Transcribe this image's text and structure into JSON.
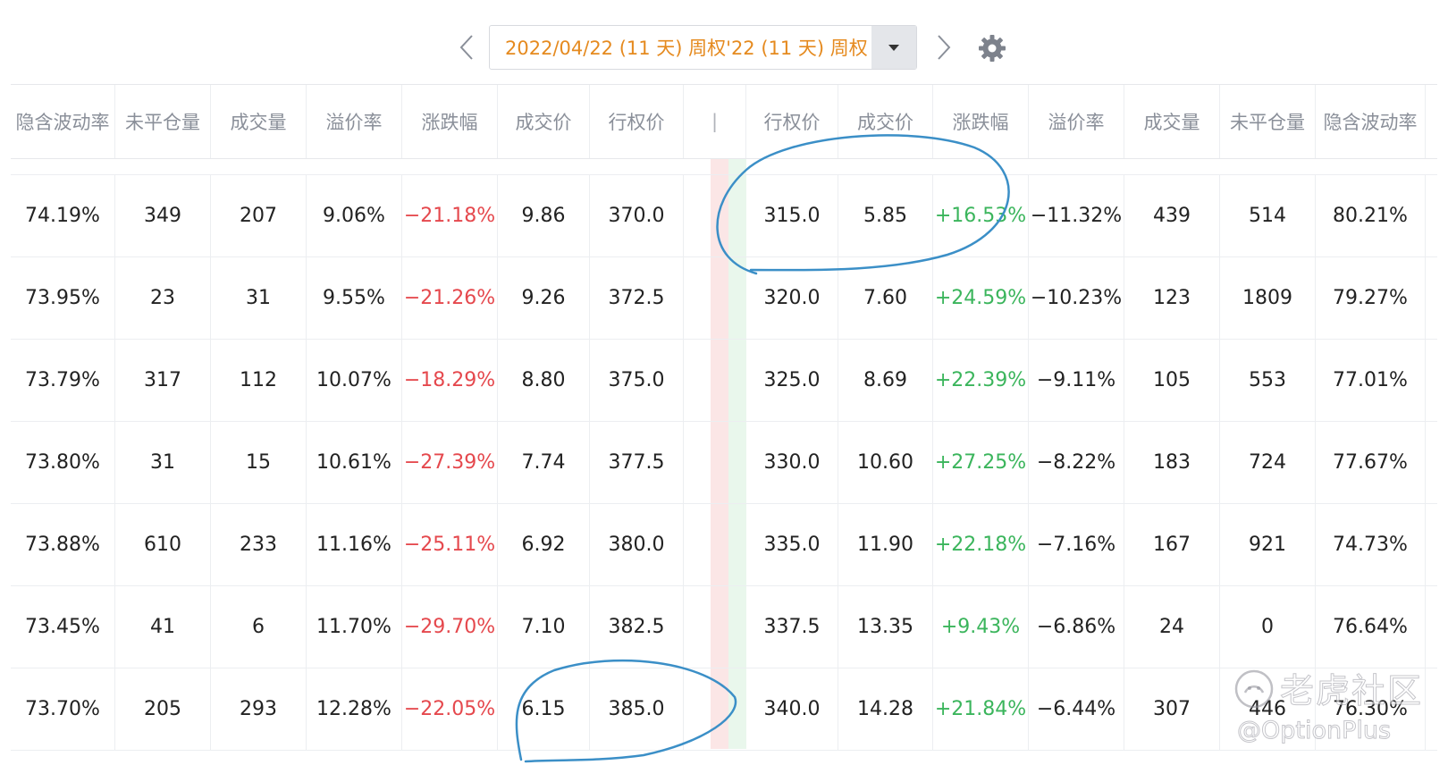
{
  "toolbar": {
    "expiry_label": "2022/04/22 (11 天) 周权'22 (11 天) 周权",
    "prev_icon": "chevron-left-icon",
    "next_icon": "chevron-right-icon",
    "settings_icon": "gear-icon"
  },
  "colors": {
    "expiry_text": "#e58a1f",
    "negative": "#e5484d",
    "positive": "#3bb55c",
    "annotation": "#3b8fc7"
  },
  "calls_headers": [
    "隐含波动率",
    "未平仓量",
    "成交量",
    "溢价率",
    "涨跌幅",
    "成交价",
    "行权价"
  ],
  "puts_headers": [
    "行权价",
    "成交价",
    "涨跌幅",
    "溢价率",
    "成交量",
    "未平仓量",
    "隐含波动率"
  ],
  "calls_rows": [
    [
      "74.19%",
      "349",
      "207",
      "9.06%",
      "−21.18%",
      "9.86",
      "370.0"
    ],
    [
      "73.95%",
      "23",
      "31",
      "9.55%",
      "−21.26%",
      "9.26",
      "372.5"
    ],
    [
      "73.79%",
      "317",
      "112",
      "10.07%",
      "−18.29%",
      "8.80",
      "375.0"
    ],
    [
      "73.80%",
      "31",
      "15",
      "10.61%",
      "−27.39%",
      "7.74",
      "377.5"
    ],
    [
      "73.88%",
      "610",
      "233",
      "11.16%",
      "−25.11%",
      "6.92",
      "380.0"
    ],
    [
      "73.45%",
      "41",
      "6",
      "11.70%",
      "−29.70%",
      "7.10",
      "382.5"
    ],
    [
      "73.70%",
      "205",
      "293",
      "12.28%",
      "−22.05%",
      "6.15",
      "385.0"
    ]
  ],
  "puts_rows": [
    [
      "315.0",
      "5.85",
      "+16.53%",
      "−11.32%",
      "439",
      "514",
      "80.21%"
    ],
    [
      "320.0",
      "7.60",
      "+24.59%",
      "−10.23%",
      "123",
      "1809",
      "79.27%"
    ],
    [
      "325.0",
      "8.69",
      "+22.39%",
      "−9.11%",
      "105",
      "553",
      "77.01%"
    ],
    [
      "330.0",
      "10.60",
      "+27.25%",
      "−8.22%",
      "183",
      "724",
      "77.67%"
    ],
    [
      "335.0",
      "11.90",
      "+22.18%",
      "−7.16%",
      "167",
      "921",
      "74.73%"
    ],
    [
      "337.5",
      "13.35",
      "+9.43%",
      "−6.86%",
      "24",
      "0",
      "76.64%"
    ],
    [
      "340.0",
      "14.28",
      "+21.84%",
      "−6.44%",
      "307",
      "446",
      "76.30%"
    ]
  ],
  "watermark": {
    "cn": "老虎社区",
    "en": "@OptionPlus"
  }
}
